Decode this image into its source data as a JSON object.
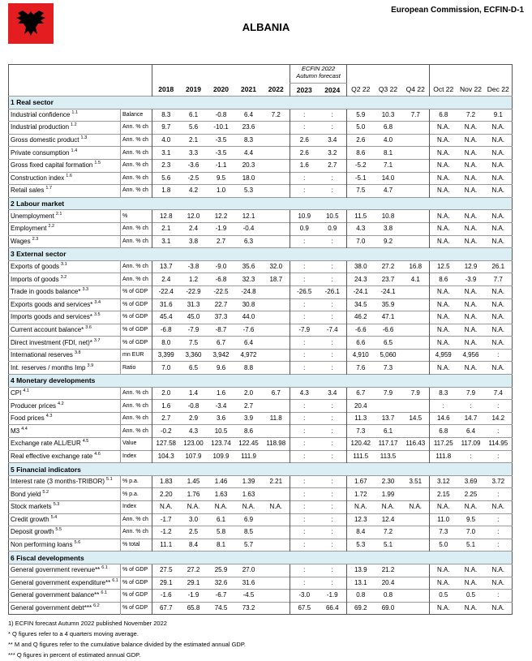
{
  "header": {
    "title": "ALBANIA",
    "source": "European Commission, ECFIN-D-1"
  },
  "table": {
    "forecast_label": "ECFIN 2022 Autumn forecast",
    "columns": [
      "2018",
      "2019",
      "2020",
      "2021",
      "2022",
      "2023",
      "2024",
      "Q2 22",
      "Q3 22",
      "Q4 22",
      "Oct 22",
      "Nov 22",
      "Dec 22"
    ],
    "sections": [
      {
        "title": "1 Real sector",
        "rows": [
          {
            "label": "Industrial confidence",
            "note": "1.1",
            "unit": "Balance",
            "values": [
              "8.3",
              "6.1",
              "-0.8",
              "6.4",
              "7.2",
              ":",
              ":",
              "5.9",
              "10.3",
              "7.7",
              "6.8",
              "7.2",
              "9.1"
            ]
          },
          {
            "label": "Industrial production",
            "note": "1.2",
            "unit": "Ann. % ch",
            "values": [
              "9.7",
              "5.6",
              "-10.1",
              "23.6",
              null,
              ":",
              ":",
              "5.0",
              "6.8",
              null,
              "N.A.",
              "N.A.",
              "N.A."
            ]
          },
          {
            "label": "Gross domestic product",
            "note": "1.3",
            "unit": "Ann. % ch",
            "values": [
              "4.0",
              "2.1",
              "-3.5",
              "8.3",
              null,
              "2.6",
              "3.4",
              "2.6",
              "4.0",
              null,
              "N.A.",
              "N.A.",
              "N.A."
            ]
          },
          {
            "label": "Private consumption",
            "note": "1.4",
            "unit": "Ann. % ch",
            "values": [
              "3.1",
              "3.3",
              "-3.5",
              "4.4",
              null,
              "2.6",
              "3.2",
              "8.6",
              "8.1",
              null,
              "N.A.",
              "N.A.",
              "N.A."
            ]
          },
          {
            "label": "Gross fixed capital formation",
            "note": "1.5",
            "unit": "Ann. % ch",
            "values": [
              "2.3",
              "-3.6",
              "-1.1",
              "20.3",
              null,
              "1.6",
              "2.7",
              "-5.2",
              "7.1",
              null,
              "N.A.",
              "N.A.",
              "N.A."
            ]
          },
          {
            "label": "Construction index",
            "note": "1.6",
            "unit": "Ann. % ch",
            "values": [
              "5.6",
              "-2.5",
              "9.5",
              "18.0",
              null,
              ":",
              ":",
              "-5.1",
              "14.0",
              null,
              "N.A.",
              "N.A.",
              "N.A."
            ]
          },
          {
            "label": "Retail sales",
            "note": "1.7",
            "unit": "Ann. % ch",
            "values": [
              "1.8",
              "4.2",
              "1.0",
              "5.3",
              null,
              ":",
              ":",
              "7.5",
              "4.7",
              null,
              "N.A.",
              "N.A.",
              "N.A."
            ]
          }
        ]
      },
      {
        "title": "2 Labour market",
        "rows": [
          {
            "label": "Unemployment",
            "note": "2.1",
            "unit": "%",
            "values": [
              "12.8",
              "12.0",
              "12.2",
              "12.1",
              null,
              "10.9",
              "10.5",
              "11.5",
              "10.8",
              null,
              "N.A.",
              "N.A.",
              "N.A."
            ]
          },
          {
            "label": "Employment",
            "note": "2.2",
            "unit": "Ann. % ch",
            "values": [
              "2.1",
              "2.4",
              "-1.9",
              "-0.4",
              null,
              "0.9",
              "0.9",
              "4.3",
              "3.8",
              null,
              "N.A.",
              "N.A.",
              "N.A."
            ]
          },
          {
            "label": "Wages",
            "note": "2.3",
            "unit": "Ann. % ch",
            "values": [
              "3.1",
              "3.8",
              "2.7",
              "6.3",
              null,
              ":",
              ":",
              "7.0",
              "9.2",
              null,
              "N.A.",
              "N.A.",
              "N.A."
            ]
          }
        ]
      },
      {
        "title": "3 External sector",
        "rows": [
          {
            "label": "Exports of goods",
            "note": "3.1",
            "unit": "Ann. % ch",
            "values": [
              "13.7",
              "-3.8",
              "-9.0",
              "35.6",
              "32.0",
              ":",
              ":",
              "38.0",
              "27.2",
              "16.8",
              "12.5",
              "12.9",
              "26.1"
            ]
          },
          {
            "label": "Imports of goods",
            "note": "3.2",
            "unit": "Ann. % ch",
            "values": [
              "2.4",
              "1.2",
              "-6.8",
              "32.3",
              "18.7",
              ":",
              ":",
              "24.3",
              "23.7",
              "4.1",
              "8.6",
              "-3.9",
              "7.7"
            ]
          },
          {
            "label": "Trade in goods balance*",
            "note": "3.3",
            "unit": "% of GDP",
            "values": [
              "-22.4",
              "-22.9",
              "-22.5",
              "-24.8",
              null,
              "-26.5",
              "-26.1",
              "-24.1",
              "-24.1",
              null,
              "N.A.",
              "N.A.",
              "N.A."
            ]
          },
          {
            "label": "Exports goods and services*",
            "note": "3.4",
            "unit": "% of GDP",
            "values": [
              "31.6",
              "31.3",
              "22.7",
              "30.8",
              null,
              ":",
              ":",
              "34.5",
              "35.9",
              null,
              "N.A.",
              "N.A.",
              "N.A."
            ]
          },
          {
            "label": "Imports goods and services*",
            "note": "3.5",
            "unit": "% of GDP",
            "values": [
              "45.4",
              "45.0",
              "37.3",
              "44.0",
              null,
              ":",
              ":",
              "46.2",
              "47.1",
              null,
              "N.A.",
              "N.A.",
              "N.A."
            ]
          },
          {
            "label": "Current account balance*",
            "note": "3.6",
            "unit": "% of GDP",
            "values": [
              "-6.8",
              "-7.9",
              "-8.7",
              "-7.6",
              null,
              "-7.9",
              "-7.4",
              "-6.6",
              "-6.6",
              null,
              "N.A.",
              "N.A.",
              "N.A."
            ]
          },
          {
            "label": "Direct investment (FDI, net)*",
            "note": "3.7",
            "unit": "% of GDP",
            "values": [
              "8.0",
              "7.5",
              "6.7",
              "6.4",
              null,
              ":",
              ":",
              "6.6",
              "6.5",
              null,
              "N.A.",
              "N.A.",
              "N.A."
            ]
          },
          {
            "label": "International reserves",
            "note": "3.8",
            "unit": "mn EUR",
            "values": [
              "3,399",
              "3,360",
              "3,942",
              "4,972",
              null,
              ":",
              ":",
              "4,910",
              "5,060",
              null,
              "4,959",
              "4,956",
              ":"
            ]
          },
          {
            "label": "Int. reserves / months Imp",
            "note": "3.9",
            "unit": "Ratio",
            "values": [
              "7.0",
              "6.5",
              "9.6",
              "8.8",
              null,
              ":",
              ":",
              "7.6",
              "7.3",
              null,
              "N.A.",
              "N.A.",
              "N.A."
            ]
          }
        ]
      },
      {
        "title": "4 Monetary developments",
        "rows": [
          {
            "label": "CPI",
            "note": "4.1",
            "unit": "Ann. % ch",
            "values": [
              "2.0",
              "1.4",
              "1.6",
              "2.0",
              "6.7",
              "4.3",
              "3.4",
              "6.7",
              "7.9",
              "7.9",
              "8.3",
              "7.9",
              "7.4"
            ]
          },
          {
            "label": "Producer prices",
            "note": "4.2",
            "unit": "Ann. % ch",
            "values": [
              "1.6",
              "-0.8",
              "-3.4",
              "2.7",
              null,
              ":",
              ":",
              "20.4",
              null,
              null,
              ":",
              ":",
              ":"
            ]
          },
          {
            "label": "Food prices",
            "note": "4.3",
            "unit": "Ann. % ch",
            "values": [
              "2.7",
              "2.9",
              "3.6",
              "3.9",
              "11.8",
              ":",
              ":",
              "11.3",
              "13.7",
              "14.5",
              "14.6",
              "14.7",
              "14.2"
            ]
          },
          {
            "label": "M3",
            "note": "4.4",
            "unit": "Ann. % ch",
            "values": [
              "-0.2",
              "4.3",
              "10.5",
              "8.6",
              null,
              ":",
              ":",
              "7.3",
              "6.1",
              null,
              "6.8",
              "6.4",
              ":"
            ]
          },
          {
            "label": "Exchange rate ALL/EUR",
            "note": "4.5",
            "unit": "Value",
            "values": [
              "127.58",
              "123.00",
              "123.74",
              "122.45",
              "118.98",
              ":",
              ":",
              "120.42",
              "117.17",
              "116.43",
              "117.25",
              "117.09",
              "114.95"
            ]
          },
          {
            "label": "Real effective exchange rate",
            "note": "4.6",
            "unit": "Index",
            "values": [
              "104.3",
              "107.9",
              "109.9",
              "111.9",
              null,
              ":",
              ":",
              "111.5",
              "113.5",
              null,
              "111.8",
              ":",
              ":"
            ]
          }
        ]
      },
      {
        "title": "5 Financial indicators",
        "rows": [
          {
            "label": "Interest rate (3 months-TRIBOR)",
            "note": "5.1",
            "unit": "% p.a.",
            "values": [
              "1.83",
              "1.45",
              "1.46",
              "1.39",
              "2.21",
              ":",
              ":",
              "1.67",
              "2.30",
              "3.51",
              "3.12",
              "3.69",
              "3.72"
            ]
          },
          {
            "label": "Bond yield",
            "note": "5.2",
            "unit": "% p.a.",
            "values": [
              "2.20",
              "1.76",
              "1.63",
              "1.63",
              null,
              ":",
              ":",
              "1.72",
              "1.99",
              null,
              "2.15",
              "2.25",
              ":"
            ]
          },
          {
            "label": "Stock markets",
            "note": "5.3",
            "unit": "Index",
            "values": [
              "N.A.",
              "N.A.",
              "N.A.",
              "N.A.",
              "N.A.",
              ":",
              ":",
              "N.A.",
              "N.A.",
              "N.A.",
              "N.A.",
              "N.A.",
              "N.A."
            ]
          },
          {
            "label": "Credit growth",
            "note": "5.4",
            "unit": "Ann. % ch",
            "values": [
              "-1.7",
              "3.0",
              "6.1",
              "6.9",
              null,
              ":",
              ":",
              "12.3",
              "12.4",
              null,
              "11.0",
              "9.5",
              ":"
            ]
          },
          {
            "label": "Deposit growth",
            "note": "5.5",
            "unit": "Ann. % ch",
            "values": [
              "-1.2",
              "2.5",
              "5.8",
              "8.5",
              null,
              ":",
              ":",
              "8.4",
              "7.2",
              null,
              "7.3",
              "7.0",
              ":"
            ]
          },
          {
            "label": "Non performing loans",
            "note": "5.6",
            "unit": "% total",
            "values": [
              "11.1",
              "8.4",
              "8.1",
              "5.7",
              null,
              ":",
              ":",
              "5.3",
              "5.1",
              null,
              "5.0",
              "5.1",
              ":"
            ]
          }
        ]
      },
      {
        "title": "6 Fiscal developments",
        "rows": [
          {
            "label": "General government revenue**",
            "note": "6.1",
            "unit": "% of GDP",
            "values": [
              "27.5",
              "27.2",
              "25.9",
              "27.0",
              null,
              ":",
              ":",
              "13.9",
              "21.2",
              null,
              "N.A.",
              "N.A.",
              "N.A."
            ]
          },
          {
            "label": "General government expenditure**",
            "note": "6.1",
            "unit": "% of GDP",
            "values": [
              "29.1",
              "29.1",
              "32.6",
              "31.6",
              null,
              ":",
              ":",
              "13.1",
              "20.4",
              null,
              "N.A.",
              "N.A.",
              "N.A."
            ]
          },
          {
            "label": "General government balance**",
            "note": "6.1",
            "unit": "% of GDP",
            "values": [
              "-1.6",
              "-1.9",
              "-6.7",
              "-4.5",
              null,
              "-3.0",
              "-1.9",
              "0.8",
              "0.8",
              null,
              "0.5",
              "0.5",
              ":"
            ]
          },
          {
            "label": "General government debt***",
            "note": "6.2",
            "unit": "% of GDP",
            "values": [
              "67.7",
              "65.8",
              "74.5",
              "73.2",
              null,
              "67.5",
              "66.4",
              "69.2",
              "69.0",
              null,
              "N.A.",
              "N.A.",
              "N.A."
            ]
          }
        ]
      }
    ]
  },
  "footnotes": [
    "1) ECFIN forecast Autumn 2022 published November 2022",
    "* Q figures refer to a 4 quarters moving average.",
    "** M and Q figures refer to the cumulative balance divided by the estimated annual GDP.",
    "*** Q figures in percent of estimated annual GDP."
  ]
}
